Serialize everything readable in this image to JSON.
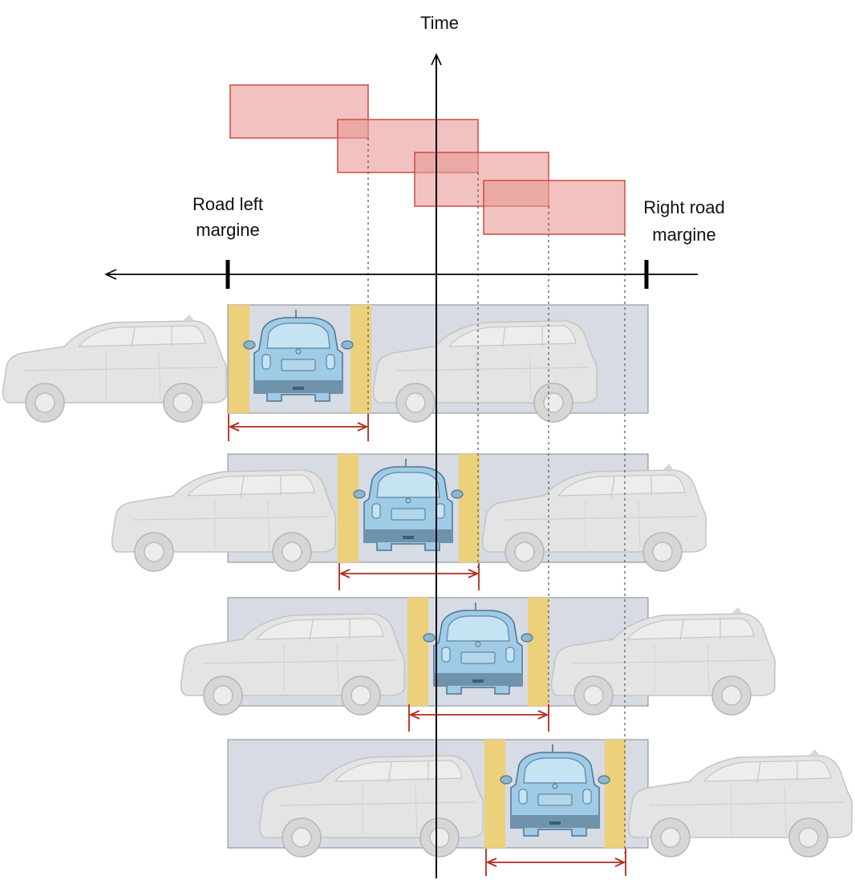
{
  "labels": {
    "time_axis": "Time",
    "left_margin_line1": "Road left",
    "left_margin_line2": "margine",
    "right_margin_line1": "Right road",
    "right_margin_line2": "margine"
  },
  "colors": {
    "background": "#ffffff",
    "road_lane": "#d7dbe4",
    "buffer_zone": "#ecd07a",
    "time_block_fill": "#e79a95",
    "time_block_stroke": "#cf4a43",
    "measure_arrow": "#b32a1c",
    "ego_car": "#9fcbe6",
    "parked_car": "#e4e4e4",
    "axis": "#000000",
    "guide_line": "#555555"
  },
  "icons": {
    "ego_vehicle": "blue-car-rear-view-icon",
    "parked_vehicle": "grey-car-side-view-icon"
  },
  "frames": 4
}
